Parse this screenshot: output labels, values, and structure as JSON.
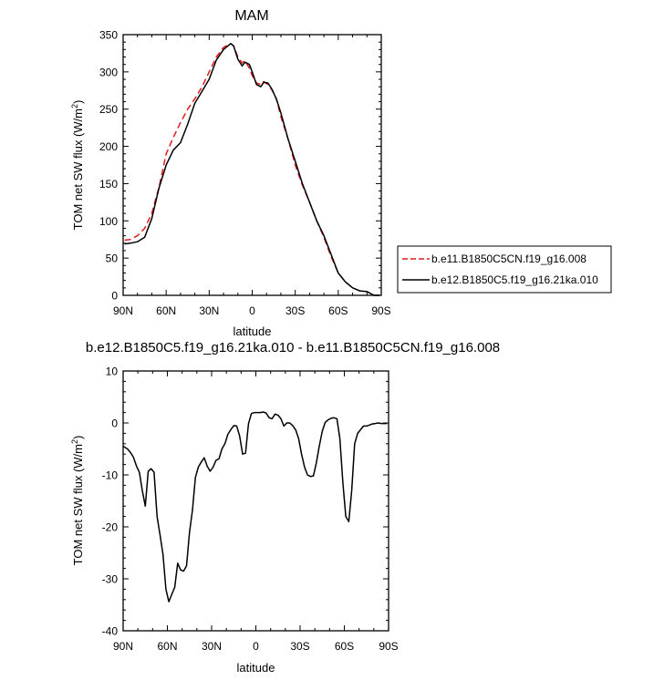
{
  "chart_data": [
    {
      "type": "line",
      "title": "MAM",
      "xlabel": "latitude",
      "ylabel": "TOM net SW flux (W/m",
      "ylabel_sup": "2",
      "ylabel_end": ")",
      "xlim": [
        90,
        -90
      ],
      "ylim": [
        0,
        350
      ],
      "x_ticks": [
        90,
        60,
        30,
        0,
        -30,
        -60,
        -90
      ],
      "x_tick_labels": [
        "90N",
        "60N",
        "30N",
        "0",
        "30S",
        "60S",
        "90S"
      ],
      "y_ticks": [
        0,
        50,
        100,
        150,
        200,
        250,
        300,
        350
      ],
      "y_tick_labels": [
        "0",
        "50",
        "100",
        "150",
        "200",
        "250",
        "300",
        "350"
      ],
      "legend_position": "right",
      "series": [
        {
          "name": "b.e11.B1850C5CN.f19_g16.008",
          "color": "#e41a1c",
          "dash": "dashed",
          "x": [
            89,
            85,
            80,
            75,
            70,
            65,
            60,
            55,
            50,
            45,
            40,
            35,
            30,
            25,
            20,
            15,
            13,
            10,
            7,
            5,
            2,
            0,
            -3,
            -6,
            -8,
            -11,
            -14,
            -17,
            -20,
            -25,
            -30,
            -35,
            -40,
            -45,
            -50,
            -55,
            -60,
            -65,
            -70,
            -75,
            -80,
            -85,
            -89
          ],
          "y": [
            74,
            75,
            80,
            90,
            110,
            145,
            190,
            212,
            232,
            250,
            264,
            280,
            300,
            320,
            333,
            338,
            335,
            320,
            312,
            315,
            305,
            295,
            285,
            283,
            287,
            283,
            275,
            263,
            240,
            210,
            175,
            148,
            125,
            100,
            78,
            52,
            30,
            18,
            10,
            6,
            5,
            0,
            0
          ]
        },
        {
          "name": "b.e12.B1850C5.f19_g16.21ka.010",
          "color": "#000000",
          "dash": "solid",
          "x": [
            89,
            85,
            80,
            75,
            70,
            65,
            60,
            55,
            50,
            45,
            40,
            35,
            30,
            25,
            20,
            15,
            13,
            10,
            7,
            5,
            2,
            0,
            -3,
            -6,
            -8,
            -11,
            -14,
            -17,
            -20,
            -25,
            -30,
            -35,
            -40,
            -45,
            -50,
            -55,
            -60,
            -65,
            -70,
            -75,
            -80,
            -85,
            -89
          ],
          "y": [
            69,
            70,
            72,
            78,
            103,
            144,
            175,
            195,
            205,
            230,
            258,
            274,
            290,
            316,
            330,
            338,
            335,
            317,
            308,
            313,
            310,
            300,
            283,
            280,
            286,
            285,
            276,
            263,
            245,
            210,
            180,
            150,
            125,
            100,
            80,
            55,
            30,
            18,
            10,
            6,
            5,
            0,
            0
          ]
        }
      ]
    },
    {
      "type": "line",
      "title": "b.e12.B1850C5.f19_g16.21ka.010 - b.e11.B1850C5CN.f19_g16.008",
      "xlabel": "latitude",
      "ylabel": "TOM net SW flux (W/m",
      "ylabel_sup": "2",
      "ylabel_end": ")",
      "xlim": [
        90,
        -90
      ],
      "ylim": [
        -40,
        10
      ],
      "x_ticks": [
        90,
        60,
        30,
        0,
        -30,
        -60,
        -90
      ],
      "x_tick_labels": [
        "90N",
        "60N",
        "30N",
        "0",
        "30S",
        "60S",
        "90S"
      ],
      "y_ticks": [
        -40,
        -30,
        -20,
        -10,
        0,
        10
      ],
      "y_tick_labels": [
        "-40",
        "-30",
        "-20",
        "-10",
        "0",
        "10"
      ],
      "series": [
        {
          "color": "#000000",
          "dash": "solid",
          "x": [
            90,
            87,
            85,
            83,
            81,
            79,
            77,
            75,
            73,
            71,
            69,
            67,
            65,
            63,
            61,
            59,
            57,
            55,
            53,
            51,
            49,
            47,
            45,
            43,
            41,
            39,
            37,
            35,
            33,
            31,
            29,
            27,
            25,
            23,
            21,
            19,
            17,
            15,
            13,
            11,
            9,
            7,
            5,
            3,
            1,
            -1,
            -3,
            -5,
            -7,
            -9,
            -11,
            -13,
            -15,
            -17,
            -19,
            -21,
            -23,
            -25,
            -27,
            -29,
            -31,
            -33,
            -35,
            -37,
            -39,
            -41,
            -43,
            -45,
            -47,
            -49,
            -51,
            -53,
            -55,
            -57,
            -59,
            -61,
            -63,
            -65,
            -67,
            -69,
            -71,
            -73,
            -75,
            -77,
            -79,
            -81,
            -83,
            -85,
            -87,
            -89
          ],
          "y": [
            -4.5,
            -5,
            -5.7,
            -6.6,
            -8.3,
            -9.5,
            -13,
            -16,
            -9.3,
            -8.8,
            -9.5,
            -18,
            -21.5,
            -25.3,
            -32,
            -34.4,
            -33,
            -31.6,
            -27,
            -28.3,
            -28.5,
            -27.5,
            -21,
            -16.8,
            -10.5,
            -8.5,
            -7.5,
            -6.7,
            -8.3,
            -9.3,
            -8.5,
            -7.2,
            -6.9,
            -5,
            -4,
            -2.2,
            -1.3,
            -0.5,
            -0.6,
            -2.5,
            -6,
            -5.8,
            -0.2,
            1.8,
            2,
            2,
            2,
            2.1,
            1.9,
            1,
            0.8,
            1.7,
            1.5,
            0.8,
            -0.6,
            0,
            0,
            -0.5,
            -1.3,
            -3,
            -6,
            -8.5,
            -10,
            -10.3,
            -10.2,
            -7.7,
            -4.5,
            -1.6,
            0.1,
            0.6,
            0.9,
            1,
            0.8,
            -3,
            -11.5,
            -18,
            -19,
            -13,
            -4,
            -2,
            -1.3,
            -0.6,
            -0.6,
            -0.4,
            -0.2,
            -0.1,
            0,
            -0.1,
            -0.1,
            -0.1
          ]
        }
      ]
    }
  ]
}
